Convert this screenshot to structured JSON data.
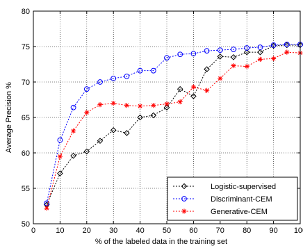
{
  "chart_data": {
    "type": "line",
    "xlabel": "% of the labeled data in the training set",
    "ylabel": "Average Precision %",
    "xlim": [
      0,
      100
    ],
    "ylim": [
      50,
      80
    ],
    "xticks": [
      "0",
      "10",
      "20",
      "30",
      "40",
      "50",
      "60",
      "70",
      "80",
      "90",
      "100"
    ],
    "yticks": [
      "50",
      "55",
      "60",
      "65",
      "70",
      "75",
      "80"
    ],
    "grid": true,
    "legend_position": "bottom-right",
    "x": [
      5,
      10,
      15,
      20,
      25,
      30,
      35,
      40,
      45,
      50,
      55,
      60,
      65,
      70,
      75,
      80,
      85,
      90,
      95,
      100
    ],
    "series": [
      {
        "name": "Logistic-supervised",
        "color": "#000000",
        "marker": "diamond",
        "values": [
          52.7,
          57.1,
          59.6,
          60.2,
          61.7,
          63.2,
          62.8,
          65.0,
          65.3,
          66.4,
          69.0,
          68.0,
          71.8,
          73.6,
          73.5,
          74.2,
          74.2,
          75.1,
          75.2,
          75.2
        ]
      },
      {
        "name": "Discriminant-CEM",
        "color": "#0000ff",
        "marker": "circle",
        "values": [
          52.9,
          61.8,
          66.4,
          69.0,
          70.0,
          70.5,
          70.8,
          71.6,
          71.6,
          73.4,
          73.9,
          74.0,
          74.4,
          74.5,
          74.6,
          74.8,
          74.9,
          75.2,
          75.3,
          75.3
        ]
      },
      {
        "name": "Generative-CEM",
        "color": "#ff0000",
        "marker": "star",
        "values": [
          52.2,
          59.5,
          63.1,
          65.7,
          66.8,
          67.0,
          66.7,
          66.6,
          66.7,
          66.9,
          67.2,
          69.3,
          68.8,
          70.5,
          72.3,
          72.2,
          73.2,
          73.3,
          74.2,
          74.1
        ]
      }
    ]
  }
}
